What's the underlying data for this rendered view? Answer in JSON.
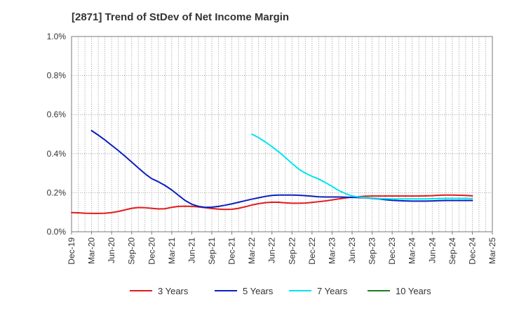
{
  "chart_data": {
    "type": "line",
    "title": "[2871]  Trend of StDev of Net Income Margin",
    "xlabel": "",
    "ylabel": "",
    "x_start": "Dec-19",
    "x_tick_labels": [
      "Dec-19",
      "Mar-20",
      "Jun-20",
      "Sep-20",
      "Dec-20",
      "Mar-21",
      "Jun-21",
      "Sep-21",
      "Dec-21",
      "Mar-22",
      "Jun-22",
      "Sep-22",
      "Dec-22",
      "Mar-23",
      "Jun-23",
      "Sep-23",
      "Dec-23",
      "Mar-24",
      "Jun-24",
      "Sep-24",
      "Dec-24",
      "Mar-25"
    ],
    "y_tick_labels": [
      "0.0%",
      "0.2%",
      "0.4%",
      "0.6%",
      "0.8%",
      "1.0%"
    ],
    "ylim": [
      0,
      1.0
    ],
    "y_unit": "%",
    "grid": true,
    "legend_position": "bottom",
    "series": [
      {
        "name": "3 Years",
        "color": "#e31a1c",
        "x": [
          "Dec-19",
          "Jan-20",
          "Feb-20",
          "Mar-20",
          "Apr-20",
          "May-20",
          "Jun-20",
          "Jul-20",
          "Aug-20",
          "Sep-20",
          "Oct-20",
          "Nov-20",
          "Dec-20",
          "Jan-21",
          "Feb-21",
          "Mar-21",
          "Apr-21",
          "May-21",
          "Jun-21",
          "Jul-21",
          "Aug-21",
          "Sep-21",
          "Oct-21",
          "Nov-21",
          "Dec-21",
          "Jan-22",
          "Feb-22",
          "Mar-22",
          "Apr-22",
          "May-22",
          "Jun-22",
          "Jul-22",
          "Aug-22",
          "Sep-22",
          "Oct-22",
          "Nov-22",
          "Dec-22",
          "Jan-23",
          "Feb-23",
          "Mar-23",
          "Apr-23",
          "May-23",
          "Jun-23",
          "Jul-23",
          "Aug-23",
          "Sep-23",
          "Oct-23",
          "Nov-23",
          "Dec-23",
          "Jan-24",
          "Feb-24",
          "Mar-24",
          "Apr-24",
          "May-24",
          "Jun-24",
          "Jul-24",
          "Aug-24",
          "Sep-24",
          "Oct-24",
          "Nov-24",
          "Dec-24"
        ],
        "values": [
          0.098,
          0.097,
          0.095,
          0.094,
          0.094,
          0.095,
          0.098,
          0.104,
          0.112,
          0.12,
          0.124,
          0.123,
          0.12,
          0.117,
          0.118,
          0.125,
          0.13,
          0.131,
          0.13,
          0.127,
          0.123,
          0.119,
          0.116,
          0.114,
          0.115,
          0.12,
          0.128,
          0.137,
          0.144,
          0.149,
          0.151,
          0.151,
          0.148,
          0.146,
          0.146,
          0.147,
          0.15,
          0.154,
          0.158,
          0.163,
          0.168,
          0.173,
          0.177,
          0.18,
          0.182,
          0.183,
          0.183,
          0.183,
          0.183,
          0.183,
          0.183,
          0.183,
          0.183,
          0.184,
          0.185,
          0.187,
          0.188,
          0.188,
          0.187,
          0.186,
          0.184
        ]
      },
      {
        "name": "5 Years",
        "color": "#0a1fbf",
        "x": [
          "Mar-20",
          "Apr-20",
          "May-20",
          "Jun-20",
          "Jul-20",
          "Aug-20",
          "Sep-20",
          "Oct-20",
          "Nov-20",
          "Dec-20",
          "Jan-21",
          "Feb-21",
          "Mar-21",
          "Apr-21",
          "May-21",
          "Jun-21",
          "Jul-21",
          "Aug-21",
          "Sep-21",
          "Oct-21",
          "Nov-21",
          "Dec-21",
          "Jan-22",
          "Feb-22",
          "Mar-22",
          "Apr-22",
          "May-22",
          "Jun-22",
          "Jul-22",
          "Aug-22",
          "Sep-22",
          "Oct-22",
          "Nov-22",
          "Dec-22",
          "Jan-23",
          "Feb-23",
          "Mar-23",
          "Apr-23",
          "May-23",
          "Jun-23",
          "Jul-23",
          "Aug-23",
          "Sep-23",
          "Oct-23",
          "Nov-23",
          "Dec-23",
          "Jan-24",
          "Feb-24",
          "Mar-24",
          "Apr-24",
          "May-24",
          "Jun-24",
          "Jul-24",
          "Aug-24",
          "Sep-24",
          "Oct-24",
          "Nov-24",
          "Dec-24"
        ],
        "values": [
          0.518,
          0.495,
          0.47,
          0.443,
          0.416,
          0.387,
          0.357,
          0.327,
          0.297,
          0.272,
          0.256,
          0.237,
          0.214,
          0.187,
          0.16,
          0.141,
          0.13,
          0.125,
          0.126,
          0.13,
          0.136,
          0.143,
          0.151,
          0.159,
          0.167,
          0.174,
          0.181,
          0.186,
          0.188,
          0.188,
          0.188,
          0.187,
          0.185,
          0.182,
          0.179,
          0.178,
          0.178,
          0.178,
          0.177,
          0.176,
          0.175,
          0.174,
          0.171,
          0.168,
          0.164,
          0.161,
          0.159,
          0.158,
          0.157,
          0.157,
          0.157,
          0.158,
          0.159,
          0.16,
          0.16,
          0.16,
          0.16,
          0.16
        ]
      },
      {
        "name": "7 Years",
        "color": "#00e5ee",
        "x": [
          "Mar-22",
          "Apr-22",
          "May-22",
          "Jun-22",
          "Jul-22",
          "Aug-22",
          "Sep-22",
          "Oct-22",
          "Nov-22",
          "Dec-22",
          "Jan-23",
          "Feb-23",
          "Mar-23",
          "Apr-23",
          "May-23",
          "Jun-23",
          "Jul-23",
          "Aug-23",
          "Sep-23",
          "Oct-23",
          "Nov-23",
          "Dec-23",
          "Jan-24",
          "Feb-24",
          "Mar-24",
          "Apr-24",
          "May-24",
          "Jun-24",
          "Jul-24",
          "Aug-24",
          "Sep-24",
          "Oct-24",
          "Nov-24",
          "Dec-24"
        ],
        "values": [
          0.5,
          0.482,
          0.46,
          0.436,
          0.41,
          0.381,
          0.35,
          0.321,
          0.3,
          0.284,
          0.27,
          0.252,
          0.232,
          0.211,
          0.196,
          0.183,
          0.178,
          0.175,
          0.172,
          0.17,
          0.169,
          0.168,
          0.168,
          0.168,
          0.168,
          0.168,
          0.168,
          0.169,
          0.17,
          0.171,
          0.171,
          0.171,
          0.171,
          0.17
        ]
      },
      {
        "name": "10 Years",
        "color": "#1e7d1e",
        "x": [],
        "values": []
      }
    ]
  }
}
